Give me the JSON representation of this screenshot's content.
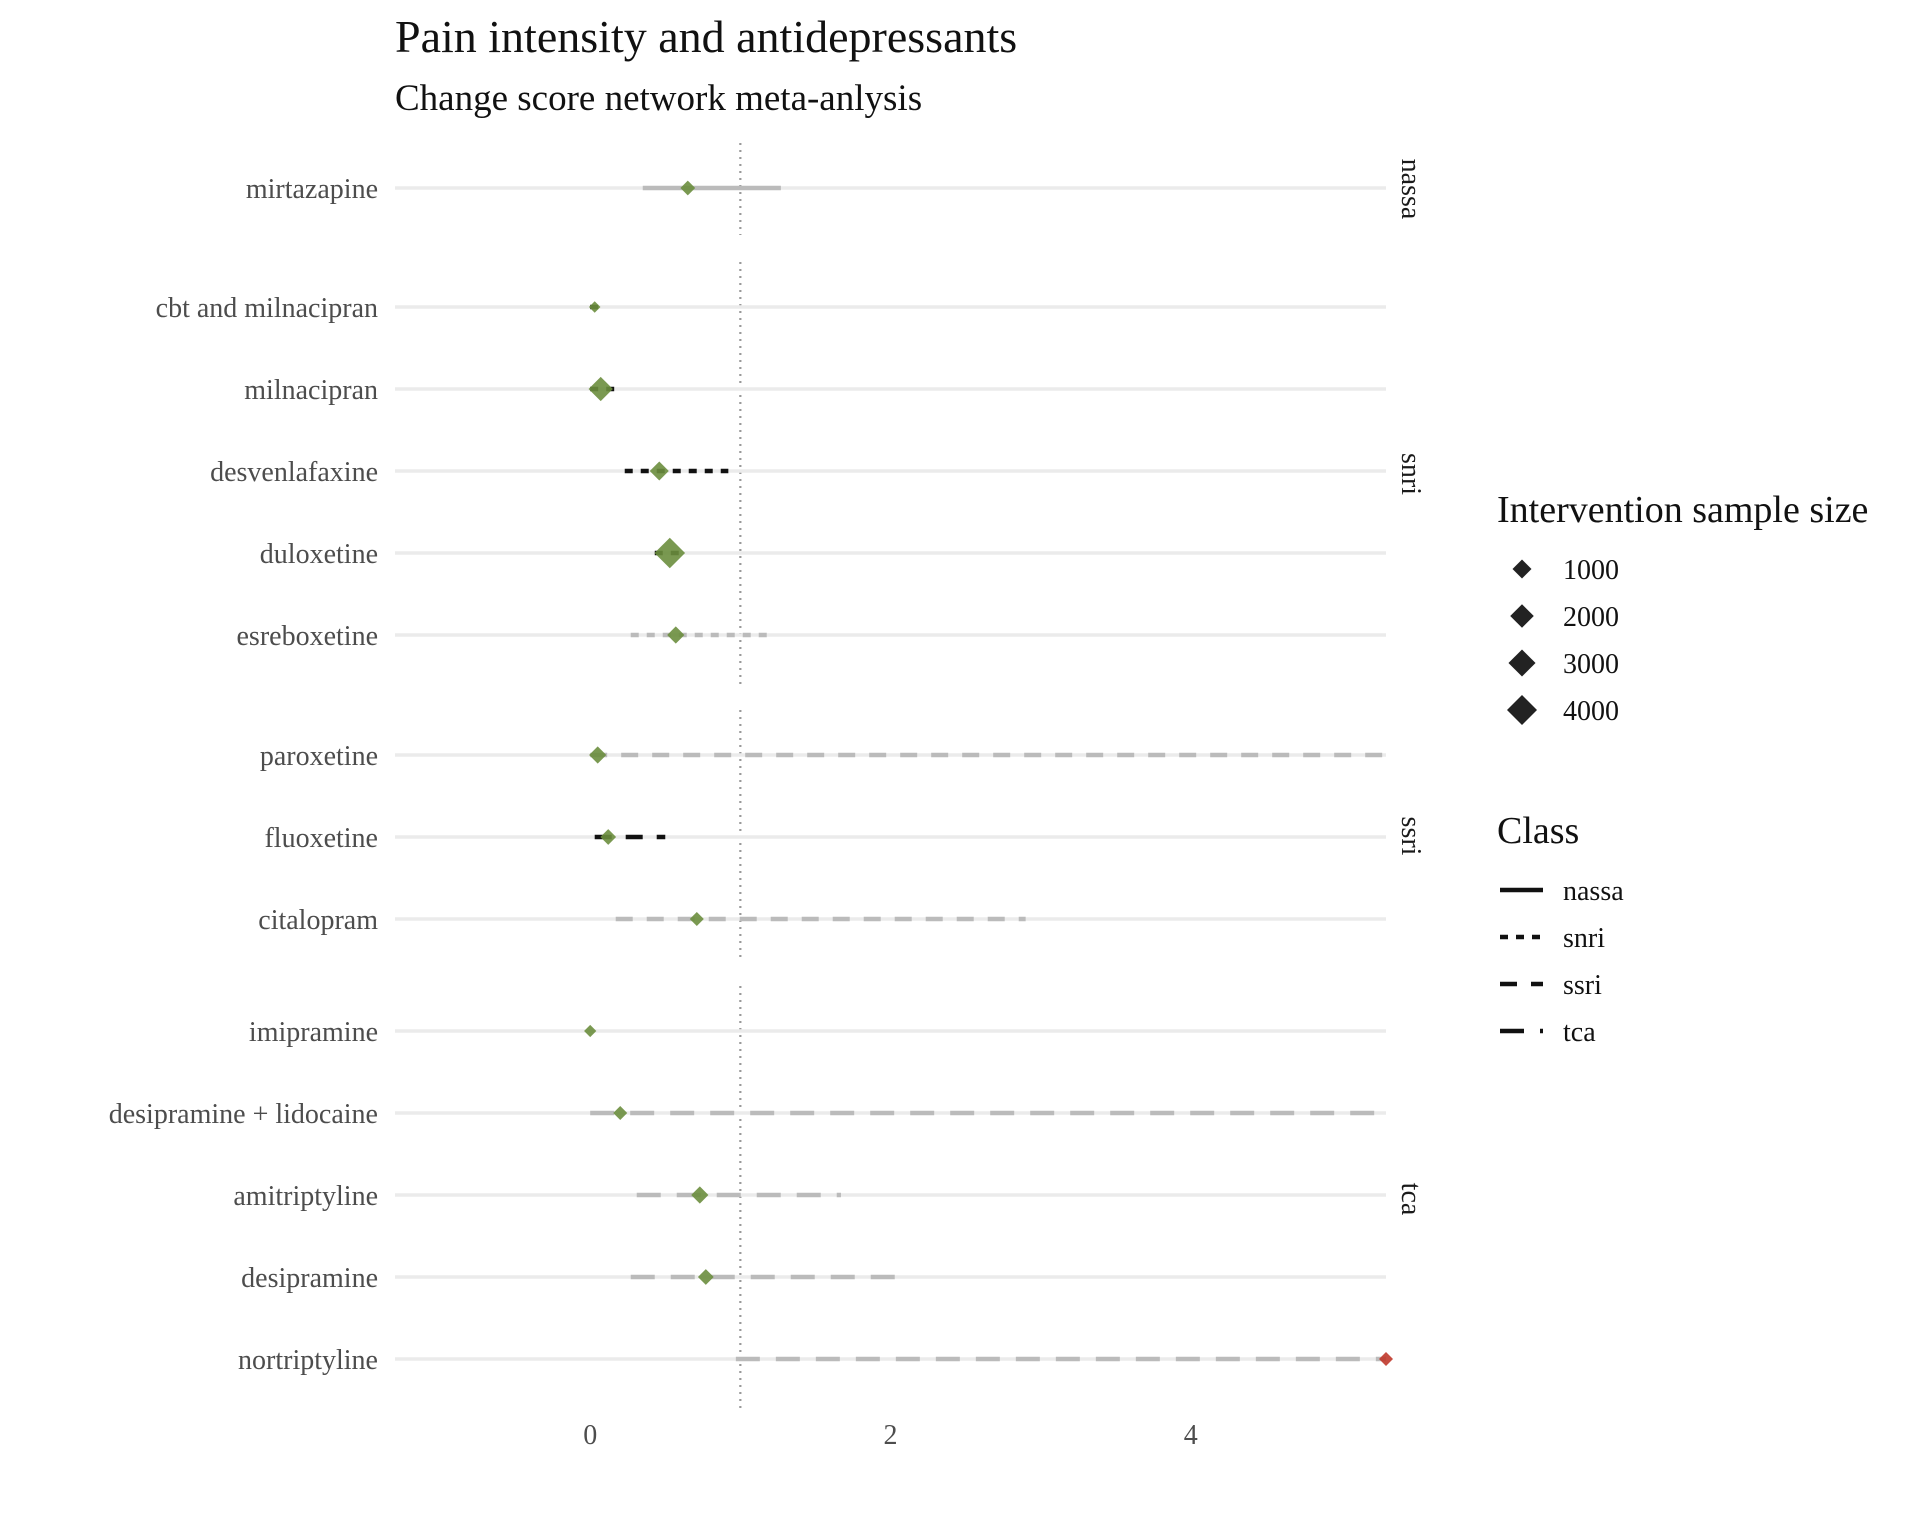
{
  "chart_data": {
    "type": "forest",
    "title": "Pain intensity and antidepressants",
    "subtitle": "Change score network meta-anlysis",
    "x_ticks": [
      0,
      2,
      4
    ],
    "xlim": [
      -1.3,
      5.3
    ],
    "reference_line": 1,
    "panels": [
      {
        "class": "nassa",
        "rows": [
          {
            "label": "mirtazapine",
            "estimate": 0.65,
            "lower": 0.35,
            "upper": 1.27,
            "n": 380,
            "significant": false
          }
        ]
      },
      {
        "class": "snri",
        "rows": [
          {
            "label": "cbt and milnacipran",
            "estimate": 0.03,
            "lower": 0.0,
            "upper": 0.07,
            "n": 100,
            "significant": true
          },
          {
            "label": "milnacipran",
            "estimate": 0.07,
            "lower": 0.0,
            "upper": 0.2,
            "n": 2200,
            "significant": true
          },
          {
            "label": "desvenlafaxine",
            "estimate": 0.46,
            "lower": 0.23,
            "upper": 0.92,
            "n": 1000,
            "significant": true
          },
          {
            "label": "duloxetine",
            "estimate": 0.53,
            "lower": 0.43,
            "upper": 0.64,
            "n": 4200,
            "significant": true
          },
          {
            "label": "esreboxetine",
            "estimate": 0.57,
            "lower": 0.27,
            "upper": 1.2,
            "n": 700,
            "significant": false
          }
        ]
      },
      {
        "class": "ssri",
        "rows": [
          {
            "label": "paroxetine",
            "estimate": 0.05,
            "lower": 0.0,
            "upper": 5.3,
            "n": 700,
            "significant": false
          },
          {
            "label": "fluoxetine",
            "estimate": 0.12,
            "lower": 0.03,
            "upper": 0.5,
            "n": 500,
            "significant": true
          },
          {
            "label": "citalopram",
            "estimate": 0.71,
            "lower": 0.17,
            "upper": 2.9,
            "n": 300,
            "significant": false
          }
        ]
      },
      {
        "class": "tca",
        "rows": [
          {
            "label": "imipramine",
            "estimate": 0.0,
            "lower": 0.0,
            "upper": 0.0,
            "n": 150,
            "significant": true
          },
          {
            "label": "desipramine + lidocaine",
            "estimate": 0.2,
            "lower": 0.0,
            "upper": 5.3,
            "n": 300,
            "significant": false
          },
          {
            "label": "amitriptyline",
            "estimate": 0.73,
            "lower": 0.31,
            "upper": 1.67,
            "n": 700,
            "significant": false
          },
          {
            "label": "desipramine",
            "estimate": 0.77,
            "lower": 0.27,
            "upper": 2.13,
            "n": 500,
            "significant": false
          },
          {
            "label": "nortriptyline",
            "estimate": 5.3,
            "lower": 0.97,
            "upper": 5.3,
            "n": 300,
            "significant": false
          }
        ]
      }
    ],
    "legend_size": {
      "title": "Intervention sample size",
      "values": [
        1000,
        2000,
        3000,
        4000
      ]
    },
    "legend_class": {
      "title": "Class",
      "items": [
        "nassa",
        "snri",
        "ssri",
        "tca"
      ]
    },
    "colors": {
      "point": "#6b8e3e",
      "point_out_of_range": "#c0392b",
      "interval_significant": "#111111",
      "interval_nonsignificant": "#bbbbbb",
      "row_guide": "#ebebeb",
      "reference_line": "#999999"
    }
  }
}
